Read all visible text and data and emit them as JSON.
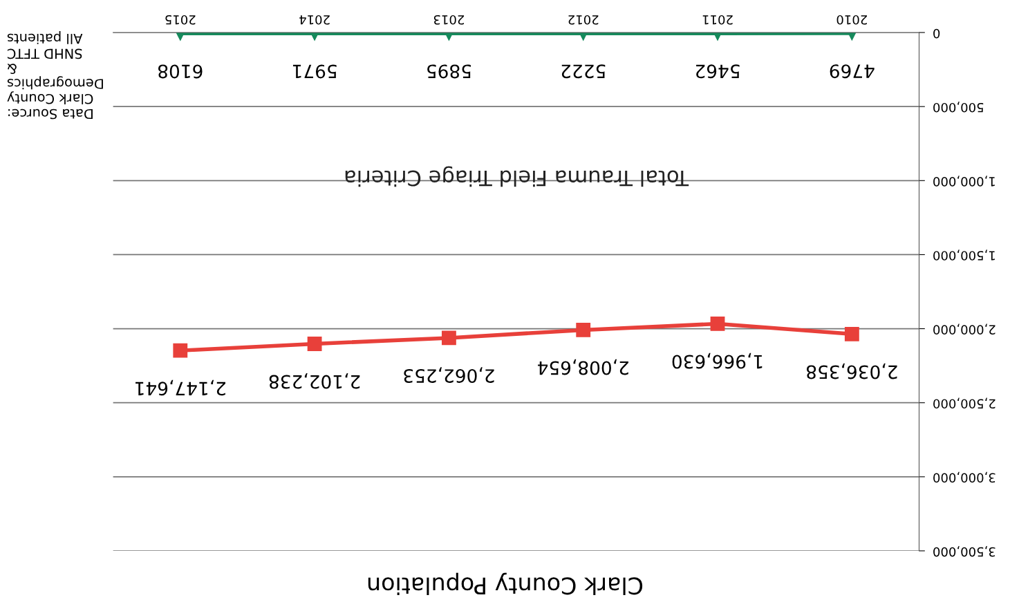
{
  "chart_data": {
    "type": "line",
    "title": "Clark County Population",
    "categories": [
      "2015",
      "2014",
      "2013",
      "2012",
      "2011",
      "2010"
    ],
    "series": [
      {
        "color": "#e8403a",
        "marker": "square",
        "values": [
          2147641,
          2102238,
          2062253,
          2008654,
          1966630,
          2036358
        ],
        "value_labels": [
          "2,147,641",
          "2,102,238",
          "2,062,253",
          "2,008,654",
          "1,966,630",
          "2,036,358"
        ]
      },
      {
        "name": "Total Trauma Field Triage Criteria",
        "color": "#168a5c",
        "marker": "triangle",
        "values": [
          6108,
          5971,
          5895,
          5222,
          5462,
          4769
        ],
        "value_labels": [
          "6108",
          "5971",
          "5895",
          "5222",
          "5462",
          "4769"
        ]
      }
    ],
    "ylim": [
      3500000,
      0
    ],
    "yticks": [
      {
        "value": 0,
        "label": "0"
      },
      {
        "value": 500000,
        "label": "500,000"
      },
      {
        "value": 1000000,
        "label": "1,000,000"
      },
      {
        "value": 1500000,
        "label": "1,500,000"
      },
      {
        "value": 2000000,
        "label": "2,000,000"
      },
      {
        "value": 2500000,
        "label": "2,500,000"
      },
      {
        "value": 3000000,
        "label": "3,000,000"
      },
      {
        "value": 3500000,
        "label": "3,500,000"
      }
    ],
    "grid": "y",
    "legend": false,
    "annotations": [
      "Data Source:\nClark County\nDemographics\n&\nSNHD TFTC\nAll patients"
    ]
  }
}
